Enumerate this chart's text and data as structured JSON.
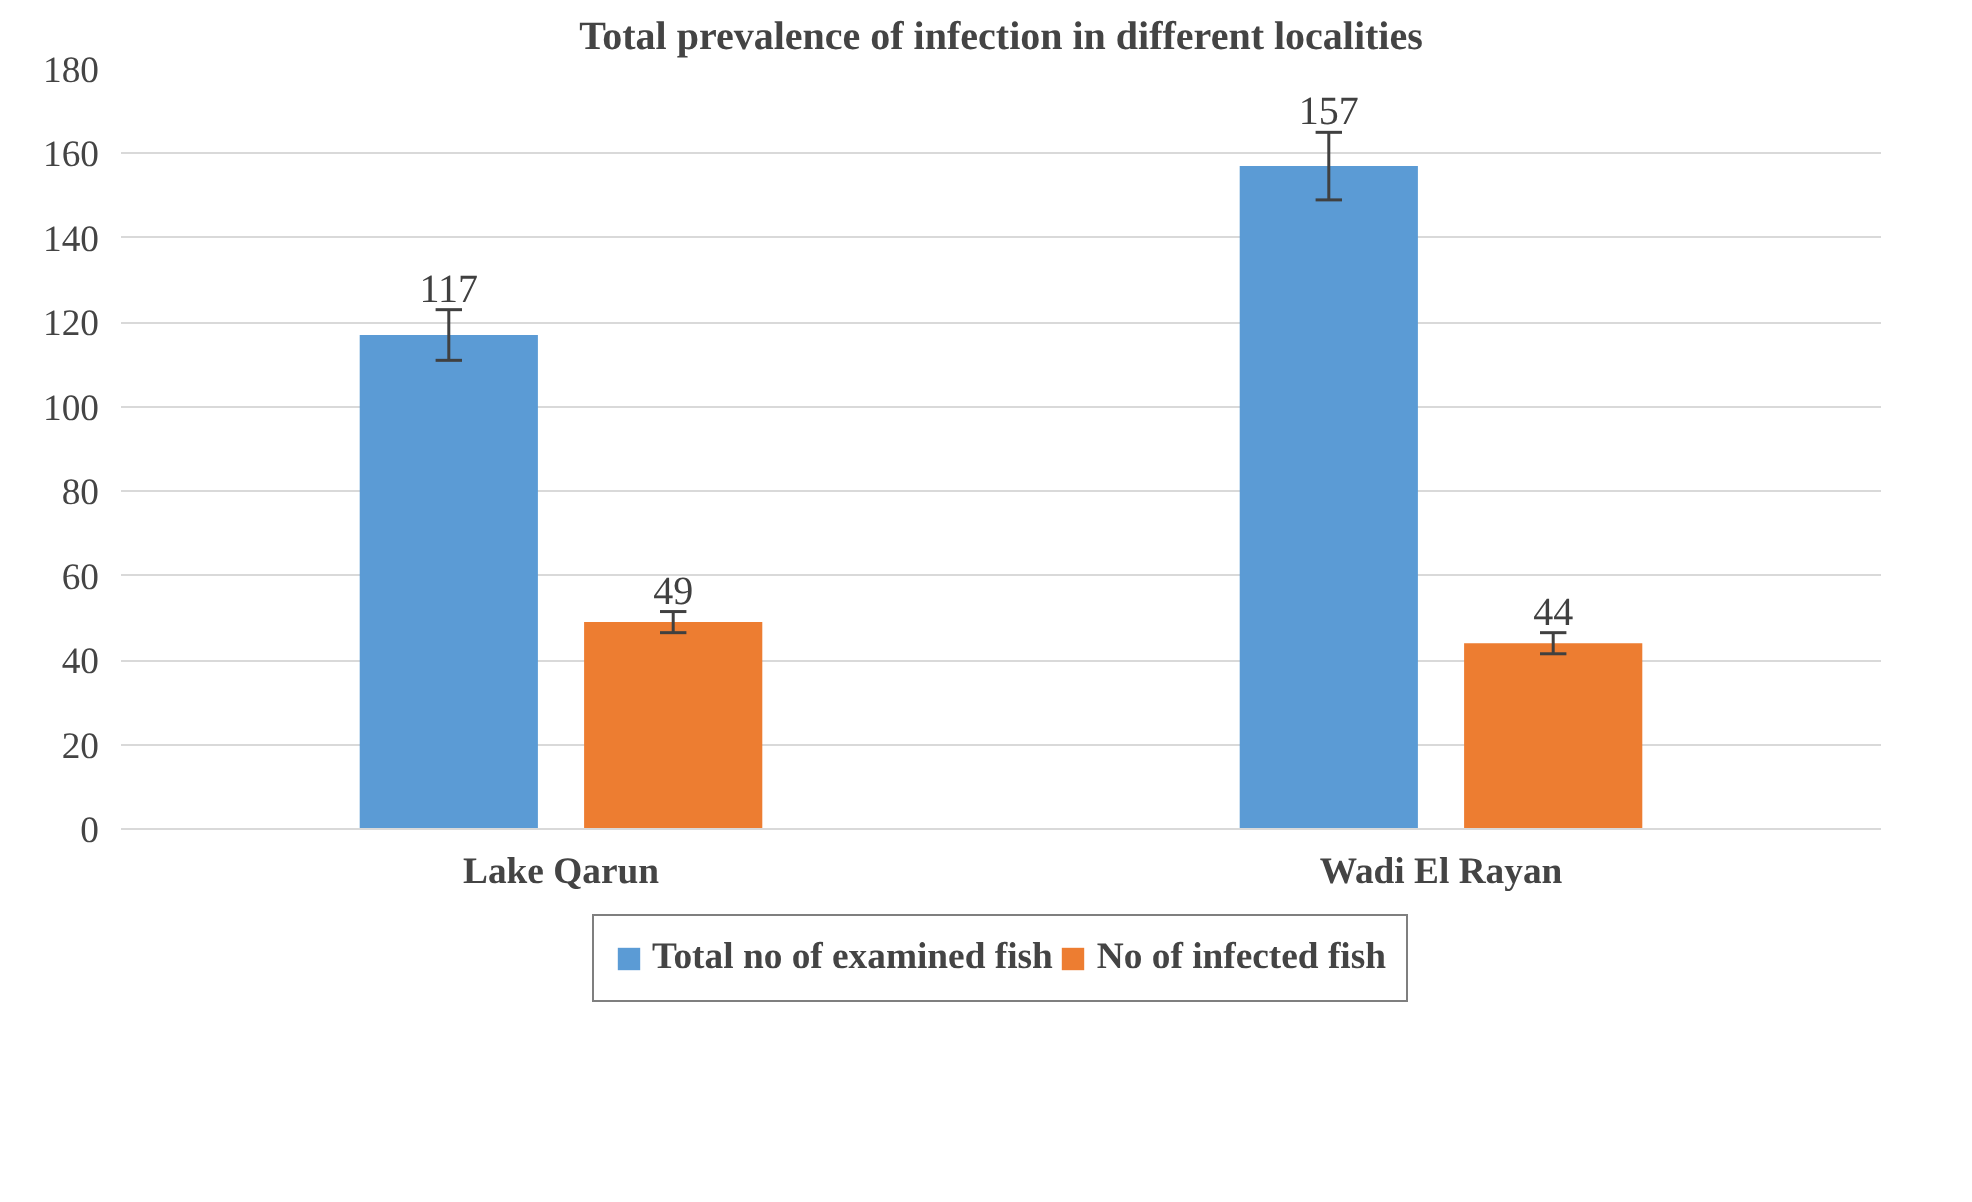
{
  "chart_data": {
    "type": "bar",
    "title": "Total prevalence of infection in different localities",
    "categories": [
      "Lake Qarun",
      "Wadi El Rayan"
    ],
    "series": [
      {
        "name": "Total no of examined fish",
        "color": "#5b9bd5",
        "values": [
          117,
          157
        ],
        "errors": [
          6,
          8
        ]
      },
      {
        "name": "No of infected fish",
        "color": "#ed7d31",
        "values": [
          49,
          44
        ],
        "errors": [
          2.5,
          2.5
        ]
      }
    ],
    "ylim": [
      0,
      180
    ],
    "yticks": [
      0,
      20,
      40,
      60,
      80,
      100,
      120,
      140,
      160,
      180
    ],
    "grid": "y",
    "legend": "bottom",
    "data_labels": true
  }
}
